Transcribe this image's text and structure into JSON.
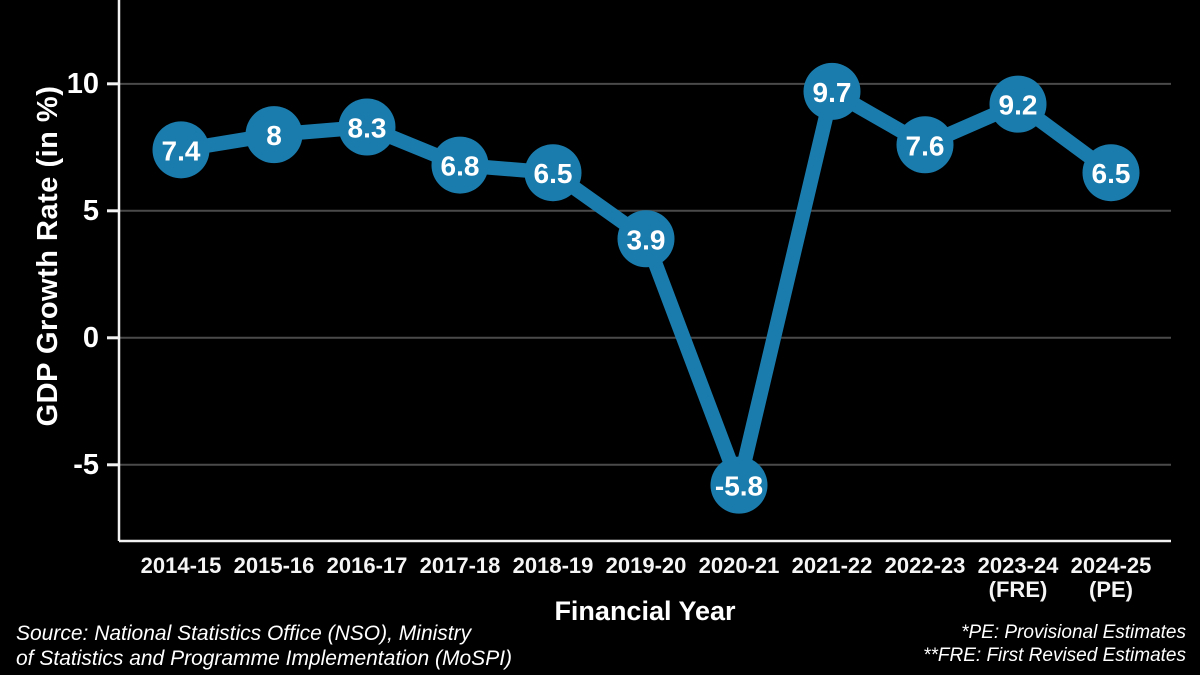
{
  "chart_data": {
    "type": "line",
    "categories": [
      "2014-15",
      "2015-16",
      "2016-17",
      "2017-18",
      "2018-19",
      "2019-20",
      "2020-21",
      "2021-22",
      "2022-23",
      "2023-24",
      "2024-25"
    ],
    "category_notes": [
      "",
      "",
      "",
      "",
      "",
      "",
      "",
      "",
      "",
      "(FRE)",
      "(PE)"
    ],
    "values": [
      7.4,
      8,
      8.3,
      6.8,
      6.5,
      3.9,
      -5.8,
      9.7,
      7.6,
      9.2,
      6.5
    ],
    "point_labels": [
      "7.4",
      "8",
      "8.3",
      "6.8",
      "6.5",
      "3.9",
      "-5.8",
      "9.7",
      "7.6",
      "9.2",
      "6.5"
    ],
    "title": "",
    "xlabel": "Financial Year",
    "ylabel": "GDP Growth Rate (in %)",
    "yticks": [
      10,
      5,
      0,
      -5
    ],
    "ylim": [
      -8,
      13.3
    ],
    "grid": true,
    "legend": "none",
    "colors": {
      "background": "#000000",
      "line": "#1a7cad",
      "marker": "#1a7cad",
      "marker_text": "#ffffff",
      "grid": "#4a4a4a",
      "axis": "#f2f2f2",
      "tick_text": "#ffffff",
      "category_text": "#f5f5f5"
    }
  },
  "footer": {
    "source_line1": "Source: National Statistics Office (NSO), Ministry",
    "source_line2": "of Statistics and Programme Implementation (MoSPI)",
    "note_line1": "*PE: Provisional Estimates",
    "note_line2": "**FRE: First Revised Estimates"
  }
}
